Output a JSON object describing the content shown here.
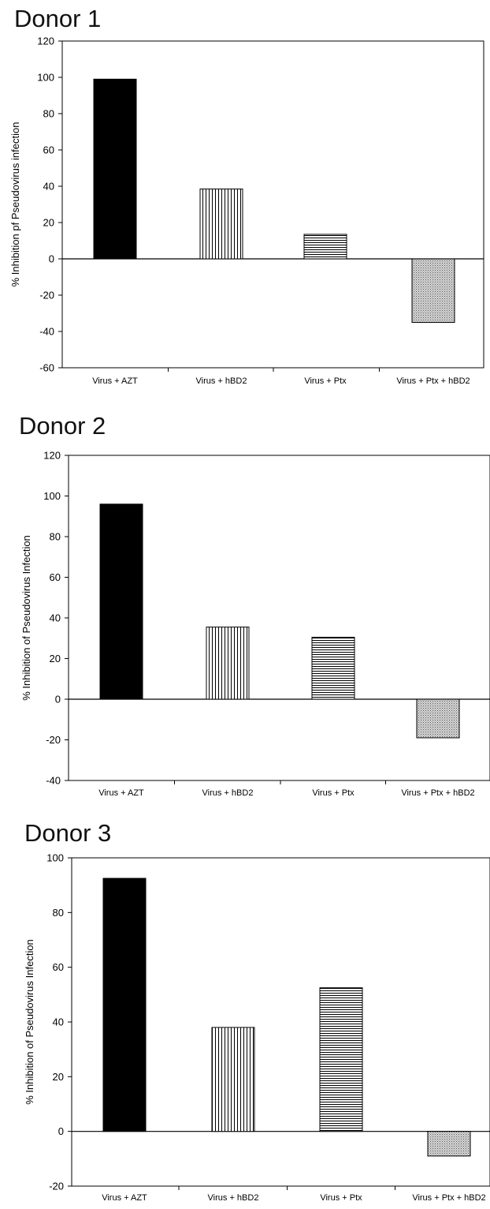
{
  "chart_data": [
    {
      "type": "bar",
      "title": "Donor 1",
      "ylabel": "% Inhibition pf Pseudovirus infection",
      "ylim": [
        -60,
        120
      ],
      "yticks": [
        -60,
        -40,
        -20,
        0,
        20,
        40,
        60,
        80,
        100,
        120
      ],
      "categories": [
        "Virus + AZT",
        "Virus + hBD2",
        "Virus + Ptx",
        "Virus + Ptx + hBD2"
      ],
      "values": [
        99,
        38.5,
        13.5,
        -35
      ],
      "fills": [
        "solid-black",
        "vertical-lines",
        "horizontal-lines",
        "dotted"
      ],
      "grid": false,
      "legend": "none"
    },
    {
      "type": "bar",
      "title": "Donor 2",
      "ylabel": "% Inhibition of Pseudovirus Infection",
      "ylim": [
        -40,
        120
      ],
      "yticks": [
        -40,
        -20,
        0,
        20,
        40,
        60,
        80,
        100,
        120
      ],
      "categories": [
        "Virus + AZT",
        "Virus + hBD2",
        "Virus + Ptx",
        "Virus + Ptx + hBD2"
      ],
      "values": [
        96,
        35.5,
        30.5,
        -19
      ],
      "fills": [
        "solid-black",
        "vertical-lines",
        "horizontal-lines",
        "dotted"
      ],
      "grid": false,
      "legend": "none"
    },
    {
      "type": "bar",
      "title": "Donor 3",
      "ylabel": "% Inhibition of Pseudovirus Infection",
      "ylim": [
        -20,
        100
      ],
      "yticks": [
        -20,
        0,
        20,
        40,
        60,
        80,
        100
      ],
      "categories": [
        "Virus + AZT",
        "Virus + hBD2",
        "Virus + Ptx",
        "Virus + Ptx + hBD2"
      ],
      "values": [
        92.5,
        38,
        52.5,
        -9
      ],
      "fills": [
        "solid-black",
        "vertical-lines",
        "horizontal-lines",
        "dotted"
      ],
      "grid": false,
      "legend": "none"
    }
  ]
}
